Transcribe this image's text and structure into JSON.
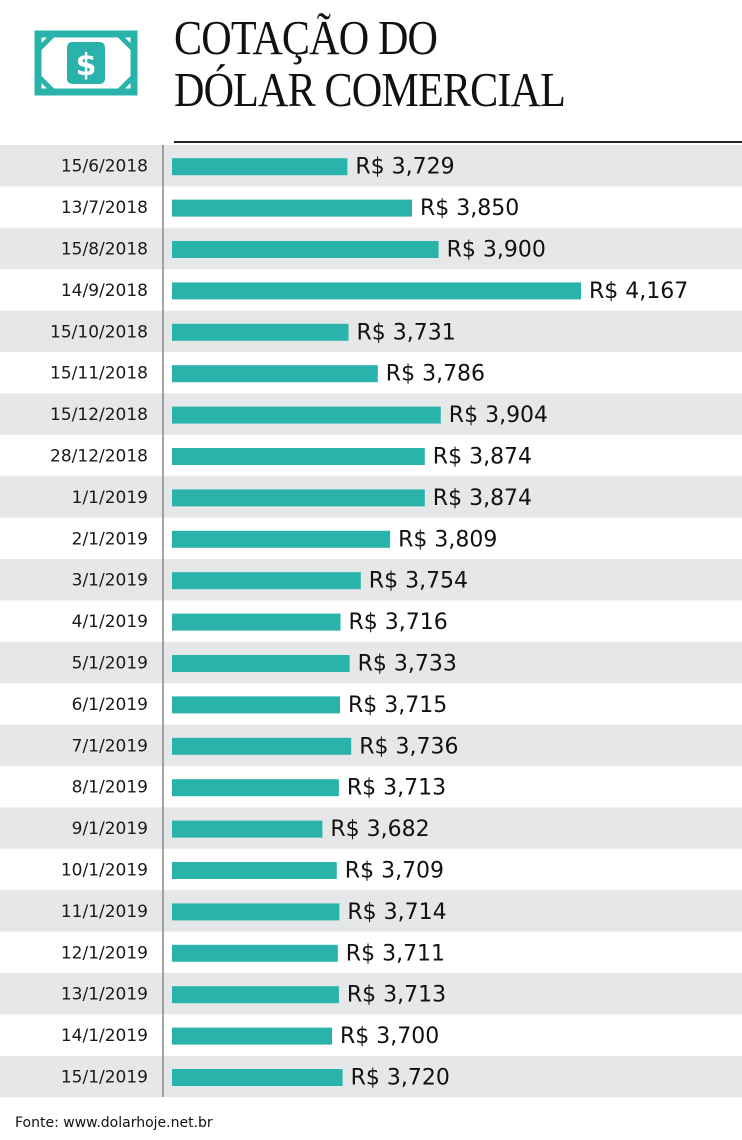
{
  "header": {
    "title_line1": "COTAÇÃO DO",
    "title_line2": "DÓLAR COMERCIAL",
    "icon": "dollar-bill-icon",
    "icon_symbol": "$",
    "icon_color": "#2ab3ab"
  },
  "colors": {
    "bar": "#2ab3ab",
    "row_shade": "#e6e7e8",
    "axis": "#888888"
  },
  "chart_data": {
    "type": "bar",
    "orientation": "horizontal",
    "categories": [
      "15/6/2018",
      "13/7/2018",
      "15/8/2018",
      "14/9/2018",
      "15/10/2018",
      "15/11/2018",
      "15/12/2018",
      "28/12/2018",
      "1/1/2019",
      "2/1/2019",
      "3/1/2019",
      "4/1/2019",
      "5/1/2019",
      "6/1/2019",
      "7/1/2019",
      "8/1/2019",
      "9/1/2019",
      "10/1/2019",
      "11/1/2019",
      "12/1/2019",
      "13/1/2019",
      "14/1/2019",
      "15/1/2019"
    ],
    "values": [
      3.729,
      3.85,
      3.9,
      4.167,
      3.731,
      3.786,
      3.904,
      3.874,
      3.874,
      3.809,
      3.754,
      3.716,
      3.733,
      3.715,
      3.736,
      3.713,
      3.682,
      3.709,
      3.714,
      3.711,
      3.713,
      3.7,
      3.72
    ],
    "value_labels": [
      "R$ 3,729",
      "R$ 3,850",
      "R$ 3,900",
      "R$ 4,167",
      "R$ 3,731",
      "R$ 3,786",
      "R$ 3,904",
      "R$ 3,874",
      "R$ 3,874",
      "R$ 3,809",
      "R$ 3,754",
      "R$ 3,716",
      "R$ 3,733",
      "R$ 3,715",
      "R$ 3,736",
      "R$ 3,713",
      "R$ 3,682",
      "R$ 3,709",
      "R$ 3,714",
      "R$ 3,711",
      "R$ 3,713",
      "R$ 3,700",
      "R$ 3,720"
    ],
    "title": "COTAÇÃO DO DÓLAR COMERCIAL",
    "xlabel": "",
    "ylabel": "",
    "grid": false,
    "legend": "none"
  },
  "source": "Fonte: www.dolarhoje.net.br"
}
